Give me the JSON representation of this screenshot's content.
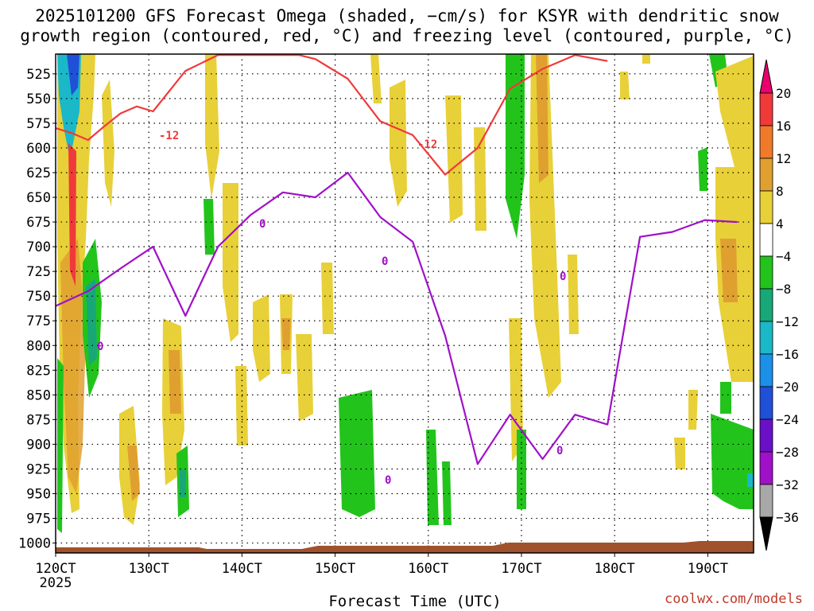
{
  "title": {
    "line1": "2025101200 GFS Forecast Omega (shaded, −cm/s) for KSYR with dendritic snow",
    "line2": "growth region (contoured, red, °C) and freezing level (contoured, purple, °C)"
  },
  "watermark": "coolwx.com/models",
  "chart_data": {
    "type": "heatmap",
    "title": "2025101200 GFS Forecast Omega (shaded, −cm/s) for KSYR with dendritic snow growth region (contoured, red, °C) and freezing level (contoured, purple, °C)",
    "xlabel": "Forecast Time (UTC)",
    "x_ticks": [
      "120CT",
      "130CT",
      "140CT",
      "150CT",
      "160CT",
      "170CT",
      "180CT",
      "190CT"
    ],
    "x_subtick": "2025",
    "y_ticks": [
      "525",
      "550",
      "575",
      "600",
      "625",
      "650",
      "675",
      "700",
      "725",
      "750",
      "775",
      "800",
      "825",
      "850",
      "875",
      "900",
      "925",
      "950",
      "975",
      "1000"
    ],
    "y_values": [
      525,
      550,
      575,
      600,
      625,
      650,
      675,
      700,
      725,
      750,
      775,
      800,
      825,
      850,
      875,
      900,
      925,
      950,
      975,
      1000
    ],
    "ylim": [
      1010,
      505
    ],
    "grid": true,
    "colorbar": {
      "labels": [
        "20",
        "16",
        "12",
        "8",
        "4",
        "−4",
        "−8",
        "−12",
        "−16",
        "−20",
        "−24",
        "−28",
        "−32",
        "−36"
      ],
      "colors": [
        "#e8006e",
        "#f03a3a",
        "#f07a2a",
        "#e0a030",
        "#e8d038",
        "#ffffff",
        "#22c41c",
        "#18a878",
        "#1ab8c8",
        "#1a90e8",
        "#2050d8",
        "#6a10c8",
        "#a010c8",
        "#a8a8a8",
        "#000000"
      ]
    },
    "contour_labels": {
      "red": [
        "-12",
        "-12"
      ],
      "purple": [
        "0",
        "0",
        "0",
        "0",
        "0",
        "0"
      ]
    },
    "series": [
      {
        "name": "dendritic snow growth region (red)",
        "color": "#f03a3a",
        "x": [
          0,
          0.5,
          1,
          1.5,
          2,
          2.5,
          3,
          4,
          5,
          6,
          7,
          7.5,
          8,
          9,
          10,
          11,
          12,
          13,
          14,
          15,
          16,
          17
        ],
        "y": [
          580,
          585,
          592,
          578,
          565,
          558,
          563,
          522,
          506,
          506,
          506,
          506,
          510,
          530,
          573,
          587,
          627,
          600,
          540,
          520,
          506,
          512
        ]
      },
      {
        "name": "freezing level (purple)",
        "color": "#a010c8",
        "x": [
          0,
          1,
          2,
          3,
          4,
          5,
          6,
          7,
          8,
          9,
          10,
          11,
          12,
          13,
          14,
          15,
          16,
          17,
          18,
          19,
          20,
          21
        ],
        "y": [
          760,
          745,
          722,
          700,
          770,
          700,
          668,
          645,
          650,
          625,
          670,
          695,
          790,
          920,
          870,
          915,
          870,
          880,
          690,
          685,
          673,
          675
        ]
      }
    ]
  }
}
